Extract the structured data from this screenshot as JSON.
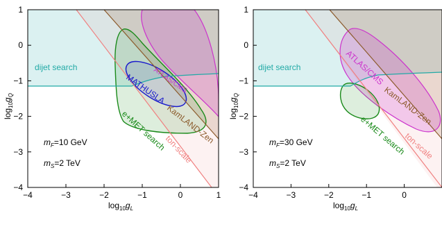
{
  "chart_data": [
    {
      "type": "region",
      "xlim": [
        -4,
        1
      ],
      "ylim": [
        -4,
        1
      ],
      "x_ticks": [
        -4,
        -3,
        -2,
        -1,
        0,
        1
      ],
      "y_ticks": [
        1,
        0,
        -1,
        -2,
        -3,
        -4
      ],
      "xlabel_base": "log",
      "xlabel_sub": "10",
      "xlabel_var": "g",
      "xlabel_varsub": "L",
      "ylabel_base": "log",
      "ylabel_sub": "10",
      "ylabel_var": "g",
      "ylabel_varsub": "Q",
      "params": [
        {
          "var": "m",
          "sub": "F",
          "value": "=10 GeV"
        },
        {
          "var": "m",
          "sub": "S",
          "value": "=2 TeV"
        }
      ],
      "labels": {
        "dijet": "dijet search",
        "atlas": "ATLAS/CMS",
        "mathusla": "MATHUSLA",
        "kamland": "KamLAND-Zen",
        "emet": "e+MET search",
        "ton": "ton-scale"
      },
      "colors": {
        "dijet": "#22aaa6",
        "atlas": "#cc33cc",
        "mathusla": "#1a1acc",
        "kamland": "#8b5a2b",
        "emet": "#1a8a1a",
        "ton": "#f08080"
      }
    },
    {
      "type": "region",
      "xlim": [
        -4,
        1
      ],
      "ylim": [
        -4,
        1
      ],
      "x_ticks": [
        -4,
        -3,
        -2,
        -1,
        0,
        1
      ],
      "y_ticks": [
        1,
        0,
        -1,
        -2,
        -3,
        -4
      ],
      "xlabel_base": "log",
      "xlabel_sub": "10",
      "xlabel_var": "g",
      "xlabel_varsub": "L",
      "ylabel_base": "log",
      "ylabel_sub": "10",
      "ylabel_var": "g",
      "ylabel_varsub": "Q",
      "params": [
        {
          "var": "m",
          "sub": "F",
          "value": "=30 GeV"
        },
        {
          "var": "m",
          "sub": "S",
          "value": "=2 TeV"
        }
      ],
      "labels": {
        "dijet": "dijet search",
        "atlas": "ATLAS/CMS",
        "kamland": "KamLAND-Zen",
        "emet": "e+MET search",
        "ton": "ton-scale"
      },
      "colors": {
        "dijet": "#22aaa6",
        "atlas": "#cc33cc",
        "kamland": "#8b5a2b",
        "emet": "#1a8a1a",
        "ton": "#f08080"
      }
    }
  ]
}
